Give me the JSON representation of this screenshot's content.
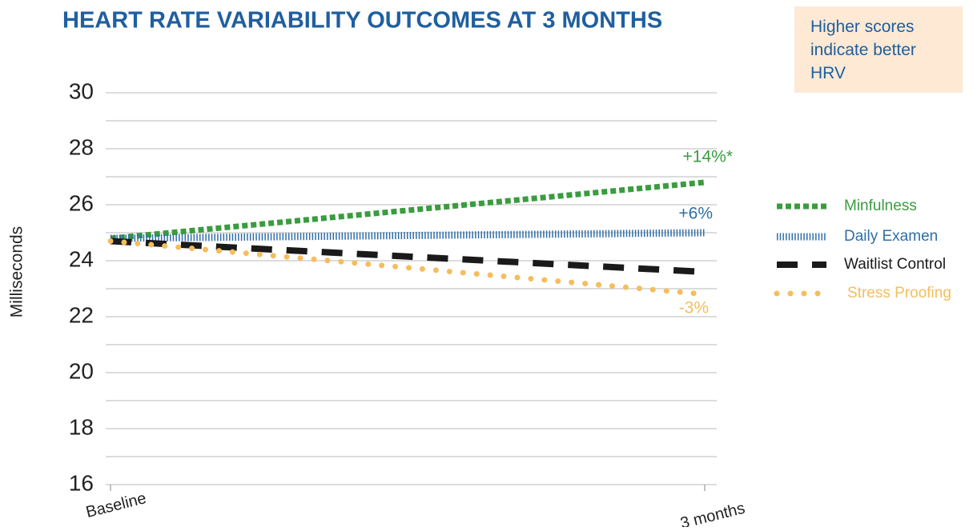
{
  "chart_data": {
    "type": "line",
    "title": "HEART RATE VARIABILITY OUTCOMES AT 3 MONTHS",
    "note": "Higher scores indicate better HRV",
    "y_label": "Milliseconds",
    "categories": [
      "Baseline",
      "3 months"
    ],
    "series": [
      {
        "name": "Minfulness",
        "color": "#3a9c3f",
        "values": [
          24.8,
          26.8
        ]
      },
      {
        "name": "Daily Examen",
        "color": "#2f6ea8",
        "values": [
          24.8,
          25.0
        ]
      },
      {
        "name": "Waitlist Control",
        "color": "#1a1a1a",
        "values": [
          24.7,
          23.6
        ]
      },
      {
        "name": "Stress Proofing",
        "color": "#f5bd5e",
        "values": [
          24.7,
          22.8
        ]
      }
    ],
    "annotations": [
      {
        "text": "+14%*",
        "color": "#3a9c3f"
      },
      {
        "text": "+6%",
        "color": "#2f6ea8"
      },
      {
        "text": "-3%",
        "color": "#f5bd5e"
      }
    ],
    "ylim": [
      16,
      30
    ],
    "yticks": [
      16,
      18,
      20,
      22,
      24,
      26,
      28,
      30
    ],
    "grid_ticks": [
      16,
      17,
      18,
      19,
      20,
      21,
      22,
      23,
      24,
      25,
      26,
      27,
      28,
      29,
      30
    ],
    "grid": true
  }
}
